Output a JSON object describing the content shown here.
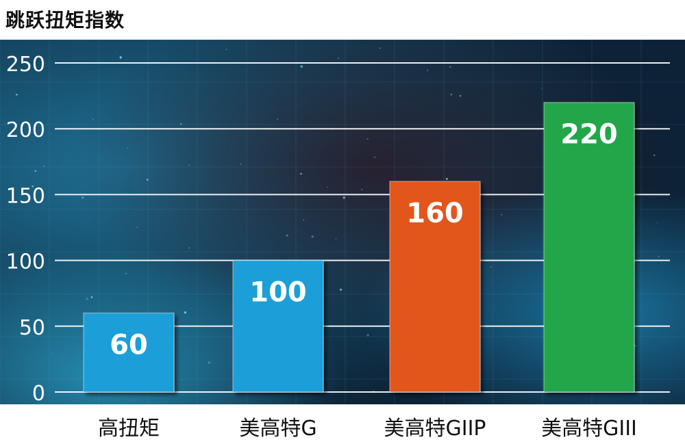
{
  "chart_data": {
    "type": "bar",
    "title": "跳跃扭矩指数",
    "categories": [
      "高扭矩",
      "美高特G",
      "美高特GIIP",
      "美高特GIII"
    ],
    "values": [
      60,
      100,
      160,
      220
    ],
    "bar_colors": [
      "#1e9fd8",
      "#1e9fd8",
      "#e2561f",
      "#24a64a"
    ],
    "data_labels": [
      "60",
      "100",
      "160",
      "220"
    ],
    "yticks": [
      "0",
      "50",
      "100",
      "150",
      "200",
      "250"
    ],
    "ylim": [
      0,
      250
    ],
    "grid": true,
    "legend": "none",
    "background": "dark space with blue grid"
  }
}
